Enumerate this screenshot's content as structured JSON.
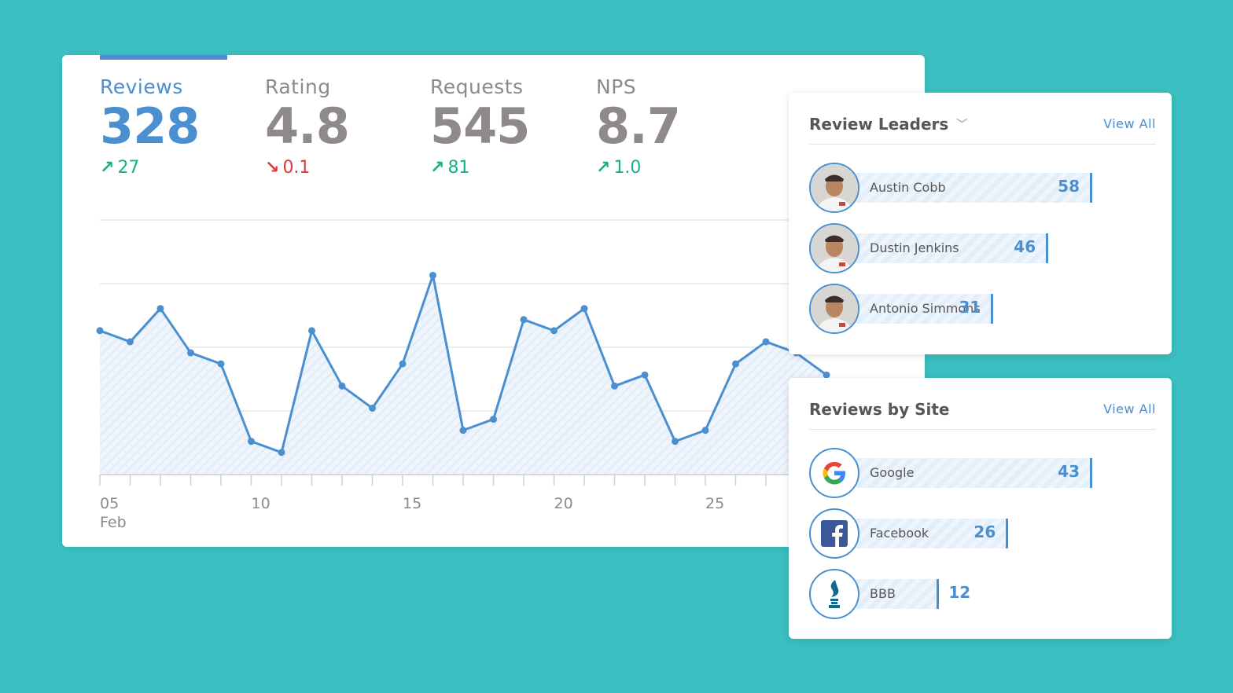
{
  "metrics": [
    {
      "label": "Reviews",
      "value": "328",
      "delta": "27",
      "direction": "up"
    },
    {
      "label": "Rating",
      "value": "4.8",
      "delta": "0.1",
      "direction": "down"
    },
    {
      "label": "Requests",
      "value": "545",
      "delta": "81",
      "direction": "up"
    },
    {
      "label": "NPS",
      "value": "8.7",
      "delta": "1.0",
      "direction": "up"
    }
  ],
  "chart_data": {
    "type": "area",
    "x_tick_labels": [
      "05",
      "10",
      "15",
      "20",
      "25"
    ],
    "x_sub_label": "Feb",
    "series": [
      {
        "values": [
          13,
          12,
          15,
          11,
          10,
          3,
          2,
          13,
          8,
          6,
          10,
          18,
          4,
          5,
          14,
          13,
          15,
          8,
          9,
          3,
          4,
          10,
          12,
          11,
          9
        ]
      }
    ],
    "ylim": [
      0,
      23
    ],
    "grid": true,
    "color": "#4a8fd0"
  },
  "review_leaders": {
    "title": "Review Leaders",
    "view_all": "View All",
    "items": [
      {
        "name": "Austin Cobb",
        "value": 58
      },
      {
        "name": "Dustin Jenkins",
        "value": 46
      },
      {
        "name": "Antonio Simmons",
        "value": 31
      }
    ]
  },
  "reviews_by_site": {
    "title": "Reviews by Site",
    "view_all": "View All",
    "items": [
      {
        "name": "Google",
        "value": 43,
        "icon": "google-icon"
      },
      {
        "name": "Facebook",
        "value": 26,
        "icon": "facebook-icon"
      },
      {
        "name": "BBB",
        "value": 12,
        "icon": "bbb-icon"
      }
    ]
  },
  "colors": {
    "accent": "#4a8fd0",
    "background": "#3bbfc0",
    "up": "#17b08a",
    "down": "#e0383a"
  }
}
